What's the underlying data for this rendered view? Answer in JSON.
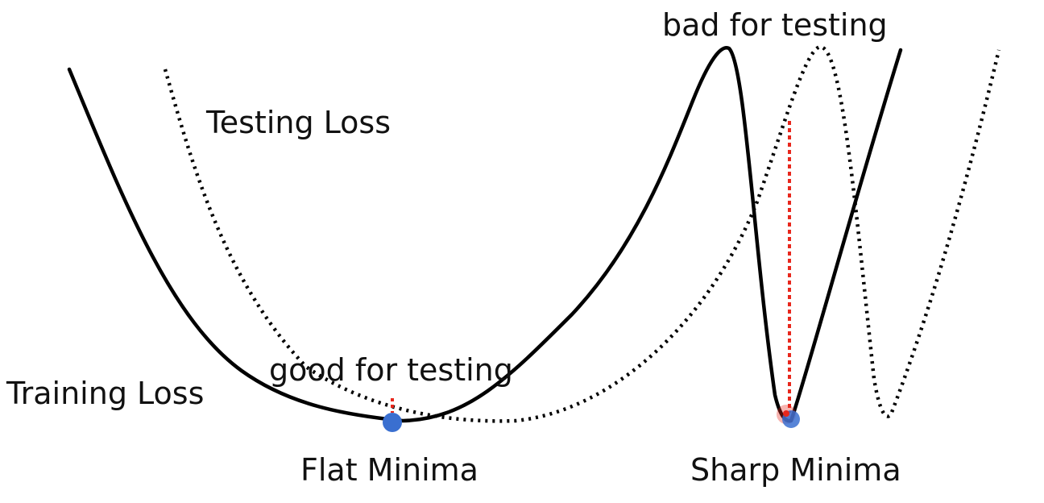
{
  "labels": {
    "testing_loss": "Testing Loss",
    "training_loss": "Training Loss",
    "good_for_testing": "good for testing",
    "bad_for_testing": "bad for testing",
    "flat_minima": "Flat Minima",
    "sharp_minima": "Sharp Minima"
  },
  "colors": {
    "curve": "#000000",
    "minimum_point": "#3a6fd0",
    "gap_marker": "#e8271c"
  }
}
